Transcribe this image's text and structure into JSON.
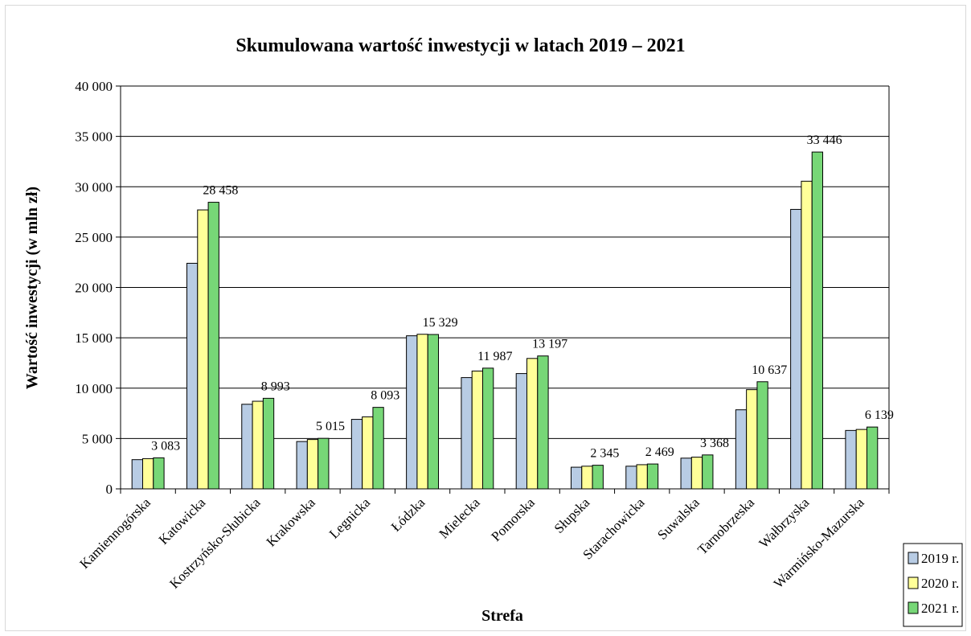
{
  "chart_data": {
    "type": "bar",
    "title": "Skumulowana wartość inwestycji w latach 2019 – 2021",
    "xlabel": "Strefa",
    "ylabel": "Wartość inwestycji (w mln  zł)",
    "ylim": [
      0,
      40000
    ],
    "yticks": [
      0,
      5000,
      10000,
      15000,
      20000,
      25000,
      30000,
      35000,
      40000
    ],
    "ytick_labels": [
      "0",
      "5 000",
      "10 000",
      "15 000",
      "20 000",
      "25 000",
      "30 000",
      "35 000",
      "40 000"
    ],
    "grid": true,
    "legend_position": "bottom-right",
    "categories": [
      "Kamiennogórska",
      "Katowicka",
      "Kostrzyńsko-Słubicka",
      "Krakowska",
      "Legnicka",
      "Łódzka",
      "Mielecka",
      "Pomorska",
      "Słupska",
      "Starachowicka",
      "Suwalska",
      "Tarnobrzeska",
      "Wałbrzyska",
      "Warmińsko-Mazurska"
    ],
    "series": [
      {
        "name": "2019 r.",
        "color": "#b8cce4",
        "values": [
          2900,
          22400,
          8400,
          4700,
          6900,
          15200,
          11050,
          11450,
          2150,
          2250,
          3050,
          7850,
          27750,
          5800
        ]
      },
      {
        "name": "2020 r.",
        "color": "#ffff99",
        "values": [
          3000,
          27700,
          8700,
          4900,
          7150,
          15350,
          11700,
          12950,
          2250,
          2400,
          3150,
          9850,
          30550,
          5900
        ]
      },
      {
        "name": "2021 r.",
        "color": "#77d777",
        "values": [
          3083,
          28458,
          8993,
          5015,
          8093,
          15329,
          11987,
          13197,
          2345,
          2469,
          3368,
          10637,
          33446,
          6139
        ]
      }
    ],
    "data_labels": [
      "3 083",
      "28 458",
      "8 993",
      "5 015",
      "8 093",
      "15 329",
      "11 987",
      "13 197",
      "2 345",
      "2 469",
      "3 368",
      "10 637",
      "33 446",
      "6 139"
    ]
  }
}
